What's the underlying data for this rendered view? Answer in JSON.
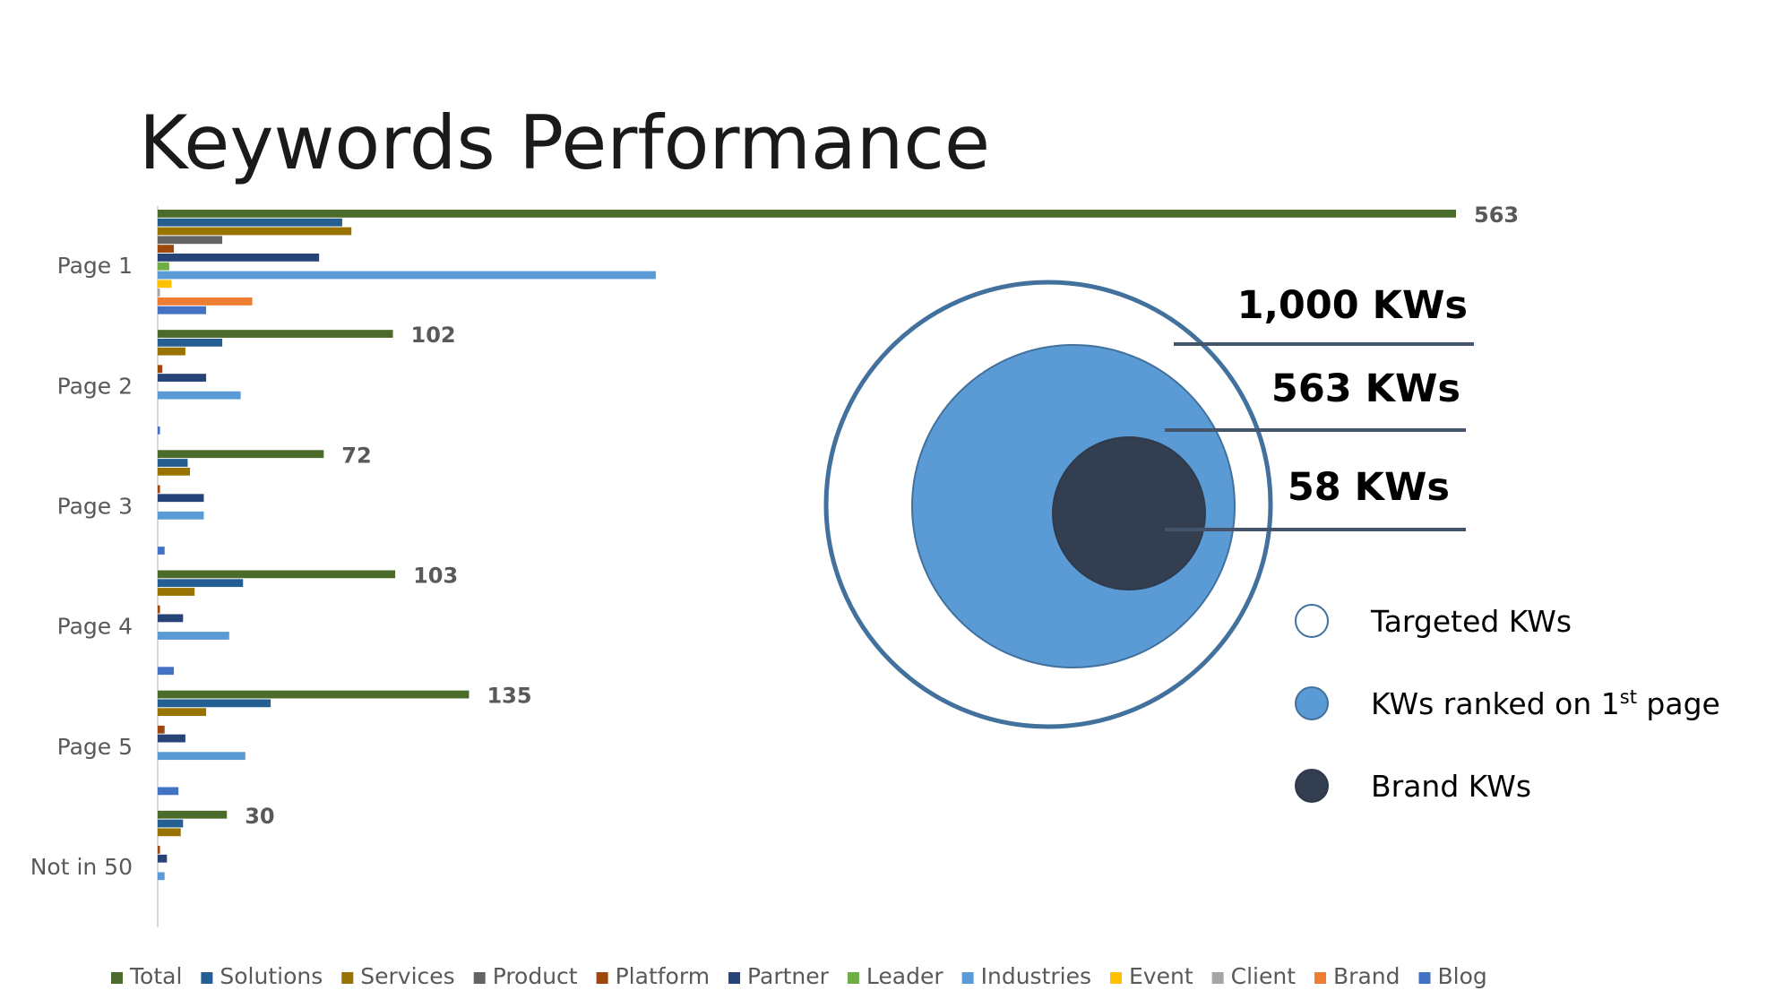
{
  "title": "Keywords Performance",
  "chart_data": [
    {
      "type": "bar",
      "orientation": "horizontal",
      "categories": [
        "Page 1",
        "Page 2",
        "Page 3",
        "Page 4",
        "Page 5",
        "Not in 50"
      ],
      "xlim": [
        0,
        563
      ],
      "grid": false,
      "legend_position": "bottom",
      "series": [
        {
          "name": "Total",
          "color": "#4a6b2a",
          "values": [
            563,
            102,
            72,
            103,
            135,
            30
          ],
          "labels": [
            "563",
            "102",
            "72",
            "103",
            "135",
            "30"
          ]
        },
        {
          "name": "Solutions",
          "color": "#255e91",
          "values": [
            80,
            28,
            13,
            37,
            49,
            11
          ]
        },
        {
          "name": "Services",
          "color": "#997300",
          "values": [
            84,
            12,
            14,
            16,
            21,
            10
          ]
        },
        {
          "name": "Product",
          "color": "#636363",
          "values": [
            28,
            0,
            0,
            0,
            0,
            0
          ]
        },
        {
          "name": "Platform",
          "color": "#9e480e",
          "values": [
            7,
            2,
            1,
            1,
            3,
            1
          ]
        },
        {
          "name": "Partner",
          "color": "#264478",
          "values": [
            70,
            21,
            20,
            11,
            12,
            4
          ]
        },
        {
          "name": "Leader",
          "color": "#70ad47",
          "values": [
            5,
            0,
            0,
            0,
            0,
            0
          ]
        },
        {
          "name": "Industries",
          "color": "#5b9bd5",
          "values": [
            216,
            36,
            20,
            31,
            38,
            3
          ]
        },
        {
          "name": "Event",
          "color": "#ffc000",
          "values": [
            6,
            0,
            0,
            0,
            0,
            0
          ]
        },
        {
          "name": "Client",
          "color": "#a5a5a5",
          "values": [
            1,
            0,
            0,
            0,
            0,
            0
          ]
        },
        {
          "name": "Brand",
          "color": "#ed7d31",
          "values": [
            41,
            0,
            0,
            0,
            0,
            0
          ]
        },
        {
          "name": "Blog",
          "color": "#4472c4",
          "values": [
            21,
            1,
            3,
            7,
            9,
            0
          ]
        }
      ]
    },
    {
      "type": "nested_circles",
      "items": [
        {
          "label": "1,000 KWs",
          "legend": "Targeted KWs",
          "value": 1000,
          "fill": "#ffffff",
          "stroke": "#41719c"
        },
        {
          "label": "563 KWs",
          "legend": "KWs ranked on 1st page",
          "legend_base": "KWs ranked on 1",
          "legend_sup": "st",
          "legend_tail": " page",
          "value": 563,
          "fill": "#5b9bd5",
          "stroke": "#41719c"
        },
        {
          "label": "58 KWs",
          "legend": "Brand KWs",
          "value": 58,
          "fill": "#333f50",
          "stroke": "#2f3b4c"
        }
      ]
    }
  ]
}
